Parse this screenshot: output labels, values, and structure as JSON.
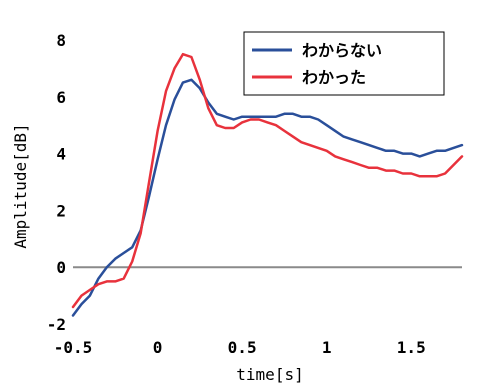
{
  "chart_data": {
    "type": "line",
    "xlabel": "time[s]",
    "ylabel": "Amplitude[dB]",
    "xlim": [
      -0.5,
      1.8
    ],
    "ylim": [
      -2,
      8
    ],
    "xticks": [
      "-0.5",
      "0",
      "0.5",
      "1",
      "1.5"
    ],
    "yticks": [
      "-2",
      "0",
      "2",
      "4",
      "6",
      "8"
    ],
    "reference_line_y": 0,
    "grid": false,
    "legend_position": "top-right",
    "colors": {
      "series1": "#2a4f9a",
      "series2": "#e8323c",
      "zero_line": "#8a8a8a"
    },
    "series": [
      {
        "name": "わからない",
        "x": [
          -0.5,
          -0.45,
          -0.4,
          -0.35,
          -0.3,
          -0.25,
          -0.2,
          -0.15,
          -0.1,
          -0.05,
          0.0,
          0.05,
          0.1,
          0.15,
          0.2,
          0.25,
          0.3,
          0.35,
          0.4,
          0.45,
          0.5,
          0.55,
          0.6,
          0.65,
          0.7,
          0.75,
          0.8,
          0.85,
          0.9,
          0.95,
          1.0,
          1.05,
          1.1,
          1.15,
          1.2,
          1.25,
          1.3,
          1.35,
          1.4,
          1.45,
          1.5,
          1.55,
          1.6,
          1.65,
          1.7,
          1.75,
          1.8
        ],
        "y": [
          -1.7,
          -1.3,
          -1.0,
          -0.4,
          0.0,
          0.3,
          0.5,
          0.7,
          1.3,
          2.5,
          3.8,
          5.0,
          5.9,
          6.5,
          6.6,
          6.3,
          5.8,
          5.4,
          5.3,
          5.2,
          5.3,
          5.3,
          5.3,
          5.3,
          5.3,
          5.4,
          5.4,
          5.3,
          5.3,
          5.2,
          5.0,
          4.8,
          4.6,
          4.5,
          4.4,
          4.3,
          4.2,
          4.1,
          4.1,
          4.0,
          4.0,
          3.9,
          4.0,
          4.1,
          4.1,
          4.2,
          4.3
        ]
      },
      {
        "name": "わかった",
        "x": [
          -0.5,
          -0.45,
          -0.4,
          -0.35,
          -0.3,
          -0.25,
          -0.2,
          -0.15,
          -0.1,
          -0.05,
          0.0,
          0.05,
          0.1,
          0.15,
          0.2,
          0.25,
          0.3,
          0.35,
          0.4,
          0.45,
          0.5,
          0.55,
          0.6,
          0.65,
          0.7,
          0.75,
          0.8,
          0.85,
          0.9,
          0.95,
          1.0,
          1.05,
          1.1,
          1.15,
          1.2,
          1.25,
          1.3,
          1.35,
          1.4,
          1.45,
          1.5,
          1.55,
          1.6,
          1.65,
          1.7,
          1.75,
          1.8
        ],
        "y": [
          -1.4,
          -1.0,
          -0.8,
          -0.6,
          -0.5,
          -0.5,
          -0.4,
          0.2,
          1.2,
          3.0,
          4.8,
          6.2,
          7.0,
          7.5,
          7.4,
          6.6,
          5.6,
          5.0,
          4.9,
          4.9,
          5.1,
          5.2,
          5.2,
          5.1,
          5.0,
          4.8,
          4.6,
          4.4,
          4.3,
          4.2,
          4.1,
          3.9,
          3.8,
          3.7,
          3.6,
          3.5,
          3.5,
          3.4,
          3.4,
          3.3,
          3.3,
          3.2,
          3.2,
          3.2,
          3.3,
          3.6,
          3.9
        ]
      }
    ]
  }
}
